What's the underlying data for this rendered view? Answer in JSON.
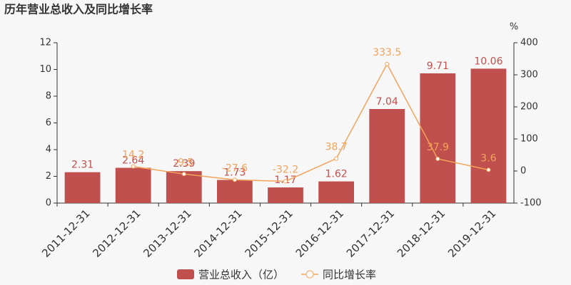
{
  "chart_data": {
    "type": "bar",
    "title": "历年营业总收入及同比增长率",
    "y2_label": "%",
    "categories": [
      "2011-12-31",
      "2012-12-31",
      "2013-12-31",
      "2014-12-31",
      "2015-12-31",
      "2016-12-31",
      "2017-12-31",
      "2018-12-31",
      "2019-12-31"
    ],
    "series": [
      {
        "name": "营业总收入（亿）",
        "type": "bar",
        "color": "#c0504d",
        "values": [
          2.31,
          2.64,
          2.39,
          1.73,
          1.17,
          1.62,
          7.04,
          9.71,
          10.06
        ]
      },
      {
        "name": "同比增长率",
        "type": "line",
        "axis": "y2",
        "color": "#f3a35a",
        "values": [
          null,
          14.2,
          -9.5,
          -27.6,
          -32.2,
          38.7,
          333.5,
          37.9,
          3.6
        ]
      }
    ],
    "ylim": [
      0,
      12
    ],
    "yticks": [
      0,
      2,
      4,
      6,
      8,
      10,
      12
    ],
    "y2lim": [
      -100,
      400
    ],
    "y2ticks": [
      -100,
      0,
      100,
      200,
      300,
      400
    ],
    "grid": false
  }
}
